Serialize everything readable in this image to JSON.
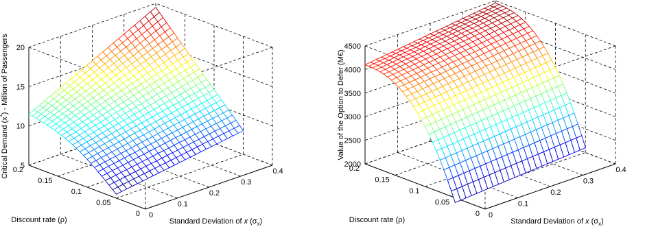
{
  "chart_data": [
    {
      "type": "surface",
      "title": "",
      "xlabel": "Standard Deviation of x (σx)",
      "xlabel_parts": [
        "Standard Deviation of ",
        "x",
        " (σ",
        "x",
        ")"
      ],
      "ylabel": "Discount rate (ρ)",
      "zlabel": "Critical Demand (x*) - Million of Passengers",
      "zlabel_parts": [
        "Critical Demand  (x",
        "*",
        ") - Million of Passengers"
      ],
      "xlim": [
        0,
        0.4
      ],
      "ylim": [
        0,
        0.2
      ],
      "zlim": [
        5,
        20
      ],
      "xticks": [
        0,
        0.1,
        0.2,
        0.3,
        0.4
      ],
      "yticks": [
        0,
        0.05,
        0.1,
        0.15,
        0.2
      ],
      "zticks": [
        5,
        10,
        15,
        20
      ],
      "grid": true,
      "colormap": "jet",
      "surface_range": {
        "x": [
          0,
          0.4
        ],
        "y": [
          0.05,
          0.2
        ],
        "z_min": 5.5,
        "z_max": 19.5
      },
      "corner_values": {
        "x_low_y_low": 5.5,
        "x_low_y_high": 11.5,
        "x_high_y_low": 8.0,
        "x_high_y_high": 19.5
      }
    },
    {
      "type": "surface",
      "title": "",
      "xlabel": "Standard Deviation of x (σx)",
      "xlabel_parts": [
        "Standard Deviation of ",
        "x",
        " (σ",
        "x",
        ")"
      ],
      "ylabel": "Discount rate (ρ)",
      "zlabel": "Value of the Option to Defer (M€)",
      "zlabel_parts": [
        "Value of the Option to Defer  (M€)"
      ],
      "xlim": [
        0,
        0.4
      ],
      "ylim": [
        0,
        0.2
      ],
      "zlim": [
        2000,
        4500
      ],
      "xticks": [
        0,
        0.1,
        0.2,
        0.3,
        0.4
      ],
      "yticks": [
        0,
        0.05,
        0.1,
        0.15,
        0.2
      ],
      "zticks": [
        2000,
        2500,
        3000,
        3500,
        4000,
        4500
      ],
      "grid": true,
      "colormap": "jet",
      "surface_range": {
        "x": [
          0,
          0.4
        ],
        "y": [
          0.05,
          0.2
        ],
        "z_min": 1900,
        "z_max": 4500
      },
      "corner_values": {
        "x_low_y_low": 1900,
        "x_low_y_high": 4100,
        "x_high_y_low": 2100,
        "x_high_y_high": 4450
      }
    }
  ]
}
